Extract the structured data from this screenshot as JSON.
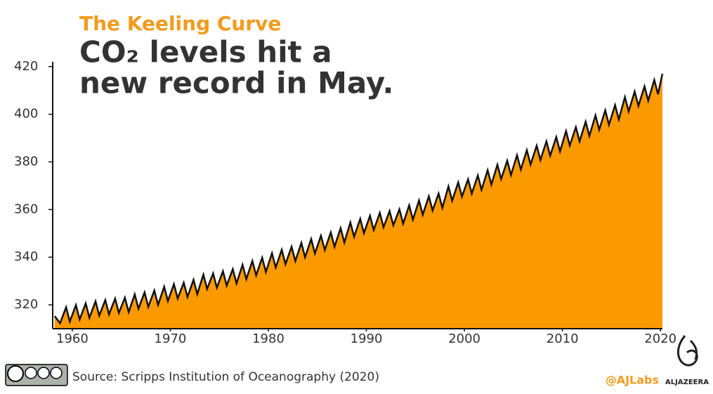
{
  "chart_data": {
    "type": "area",
    "title": "The Keeling Curve",
    "subtitle": [
      "CO₂ levels hit a",
      "new record in May."
    ],
    "color": "#fb9a00",
    "line_color": "#111111",
    "xlim": [
      1958,
      2020.2
    ],
    "xticks": [
      1960,
      1970,
      1980,
      1990,
      2000,
      2010,
      2020
    ],
    "ylim": [
      310,
      422
    ],
    "yticks": [
      320,
      340,
      360,
      380,
      400,
      420
    ],
    "grid": false,
    "x": [
      1958.2,
      1958.75,
      1959.37,
      1959.75,
      1960.37,
      1960.75,
      1961.37,
      1961.75,
      1962.37,
      1962.75,
      1963.37,
      1963.75,
      1964.37,
      1964.75,
      1965.37,
      1965.75,
      1966.37,
      1966.75,
      1967.37,
      1967.75,
      1968.37,
      1968.75,
      1969.37,
      1969.75,
      1970.37,
      1970.75,
      1971.37,
      1971.75,
      1972.37,
      1972.75,
      1973.37,
      1973.75,
      1974.37,
      1974.75,
      1975.37,
      1975.75,
      1976.37,
      1976.75,
      1977.37,
      1977.75,
      1978.37,
      1978.75,
      1979.37,
      1979.75,
      1980.37,
      1980.75,
      1981.37,
      1981.75,
      1982.37,
      1982.75,
      1983.37,
      1983.75,
      1984.37,
      1984.75,
      1985.37,
      1985.75,
      1986.37,
      1986.75,
      1987.37,
      1987.75,
      1988.37,
      1988.75,
      1989.37,
      1989.75,
      1990.37,
      1990.75,
      1991.37,
      1991.75,
      1992.37,
      1992.75,
      1993.37,
      1993.75,
      1994.37,
      1994.75,
      1995.37,
      1995.75,
      1996.37,
      1996.75,
      1997.37,
      1997.75,
      1998.37,
      1998.75,
      1999.37,
      1999.75,
      2000.37,
      2000.75,
      2001.37,
      2001.75,
      2002.37,
      2002.75,
      2003.37,
      2003.75,
      2004.37,
      2004.75,
      2005.37,
      2005.75,
      2006.37,
      2006.75,
      2007.37,
      2007.75,
      2008.37,
      2008.75,
      2009.37,
      2009.75,
      2010.37,
      2010.75,
      2011.37,
      2011.75,
      2012.37,
      2012.75,
      2013.37,
      2013.75,
      2014.37,
      2014.75,
      2015.37,
      2015.75,
      2016.37,
      2016.75,
      2017.37,
      2017.75,
      2018.37,
      2018.75,
      2019.37,
      2019.75,
      2020.2
    ],
    "values": [
      315.3,
      312.3,
      319.0,
      313.0,
      319.9,
      313.9,
      320.6,
      314.6,
      321.5,
      315.5,
      322.0,
      316.0,
      322.6,
      316.6,
      323.0,
      317.0,
      324.4,
      318.4,
      325.2,
      319.2,
      326.0,
      320.0,
      327.6,
      321.6,
      328.7,
      322.7,
      329.3,
      323.3,
      330.5,
      324.5,
      332.7,
      326.7,
      333.2,
      327.2,
      334.1,
      328.1,
      335.0,
      329.0,
      336.8,
      330.8,
      338.4,
      332.4,
      339.8,
      333.8,
      341.7,
      335.7,
      343.1,
      337.1,
      344.4,
      338.4,
      346.0,
      340.0,
      347.6,
      341.6,
      349.0,
      343.0,
      350.4,
      344.4,
      352.2,
      346.2,
      354.6,
      348.6,
      356.1,
      350.1,
      357.4,
      351.4,
      358.6,
      352.6,
      359.4,
      353.4,
      360.1,
      354.1,
      361.8,
      355.8,
      363.8,
      357.8,
      365.6,
      359.6,
      366.7,
      360.7,
      369.7,
      363.7,
      371.4,
      365.4,
      372.7,
      366.7,
      374.3,
      368.3,
      376.5,
      370.5,
      378.8,
      372.8,
      380.5,
      374.5,
      382.8,
      376.8,
      384.9,
      378.9,
      386.8,
      380.8,
      388.6,
      382.6,
      390.4,
      384.4,
      392.9,
      386.9,
      394.6,
      388.6,
      396.9,
      390.9,
      399.5,
      393.5,
      401.6,
      395.6,
      403.8,
      397.8,
      407.2,
      401.2,
      409.5,
      403.5,
      411.7,
      405.7,
      414.4,
      408.4,
      417.0
    ]
  },
  "footer": {
    "source": "Source: Scripps Institution of Oceanography (2020)",
    "credit": "@AJLabs",
    "logo": "ALJAZEERA"
  }
}
